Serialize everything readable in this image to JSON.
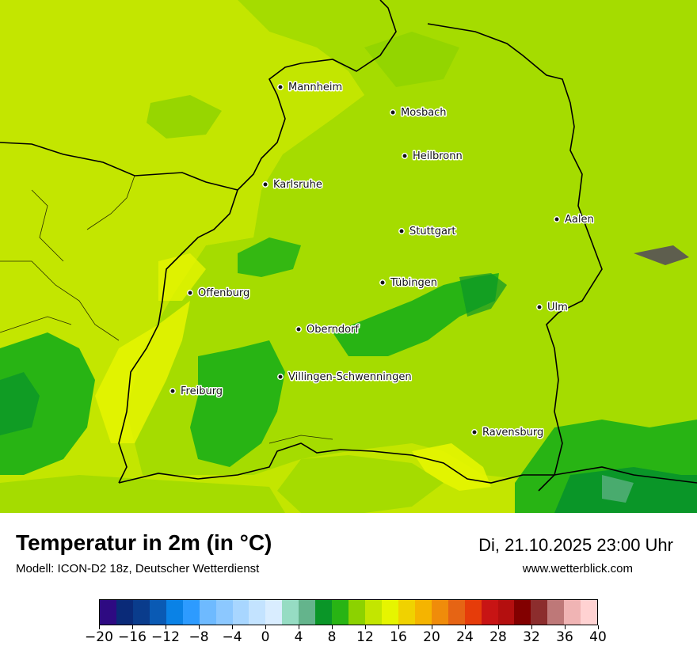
{
  "title": "Temperatur in 2m (in °C)",
  "model": "Modell: ICON-D2 18z, Deutscher Wetterdienst",
  "datetime": "Di, 21.10.2025 23:00 Uhr",
  "website": "www.wetterblick.com",
  "cities": [
    {
      "name": "Mannheim"
    },
    {
      "name": "Mosbach"
    },
    {
      "name": "Heilbronn"
    },
    {
      "name": "Karlsruhe"
    },
    {
      "name": "Aalen"
    },
    {
      "name": "Stuttgart"
    },
    {
      "name": "Offenburg"
    },
    {
      "name": "Tübingen"
    },
    {
      "name": "Ulm"
    },
    {
      "name": "Oberndorf"
    },
    {
      "name": "Villingen-Schwenningen"
    },
    {
      "name": "Freiburg"
    },
    {
      "name": "Ravensburg"
    }
  ],
  "colorscale": {
    "colors": [
      "#2e0a82",
      "#0a2a78",
      "#0a3c8c",
      "#0a5ab4",
      "#0a82e6",
      "#2d9bff",
      "#6ebaff",
      "#8cc8ff",
      "#a8d6ff",
      "#c3e3ff",
      "#d9edff",
      "#96dcc3",
      "#64b48c",
      "#0a9628",
      "#28b414",
      "#8cd200",
      "#c3e600",
      "#e6f500",
      "#f0d200",
      "#f5b400",
      "#f08c0a",
      "#e66414",
      "#e63c0a",
      "#c81414",
      "#b40f0f",
      "#820000",
      "#8c2d2d",
      "#be7878",
      "#f0b4b4",
      "#ffd2d2"
    ],
    "tick_labels": [
      "−20",
      "−16",
      "−12",
      "−8",
      "−4",
      "0",
      "4",
      "8",
      "12",
      "16",
      "20",
      "24",
      "28",
      "32",
      "36",
      "40"
    ]
  }
}
